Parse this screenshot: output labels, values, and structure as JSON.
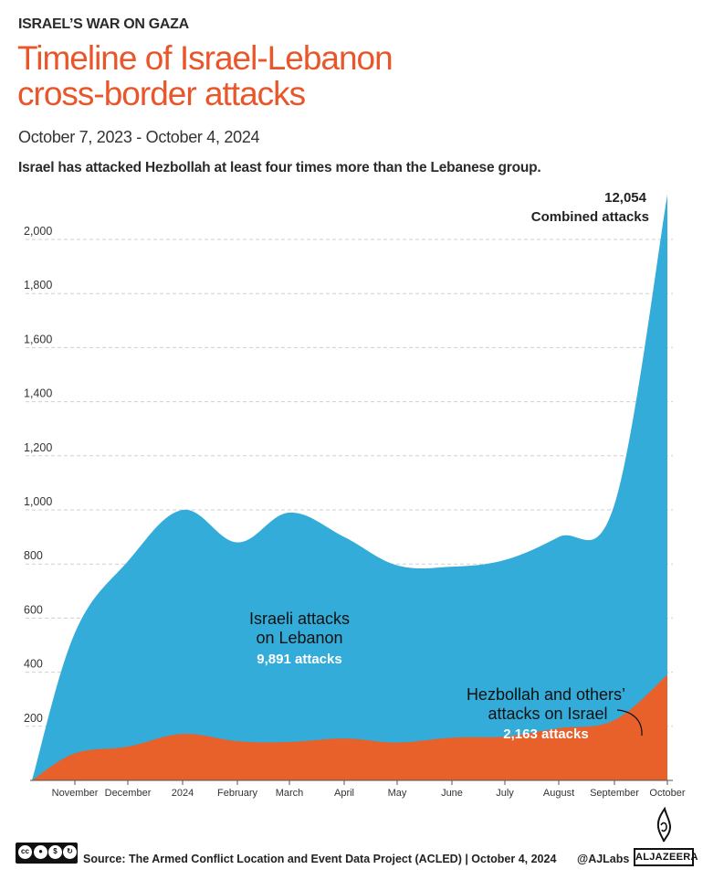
{
  "header": {
    "kicker": "ISRAEL’S WAR ON GAZA",
    "title_line1": "Timeline of Israel-Lebanon",
    "title_line2": "cross-border attacks",
    "date_range": "October 7, 2023 - October 4, 2024",
    "subtitle": "Israel has attacked Hezbollah at least four times more than the Lebanese group."
  },
  "colors": {
    "title": "#e8562a",
    "israeli_area": "#33acd9",
    "hezbollah_area": "#e8602a",
    "grid": "#cfcfcf",
    "text": "#222222"
  },
  "chart_data": {
    "type": "area",
    "stacked": true,
    "title": "Timeline of Israel-Lebanon cross-border attacks",
    "xlabel": "",
    "ylabel": "",
    "ylim": [
      0,
      2000
    ],
    "yticks": [
      200,
      400,
      600,
      800,
      1000,
      1200,
      1400,
      1600,
      1800,
      2000
    ],
    "ytick_labels": [
      "200",
      "400",
      "600",
      "800",
      "1,000",
      "1,200",
      "1,400",
      "1,600",
      "1,800",
      "2,000"
    ],
    "grid": true,
    "x": [
      "Oct 7",
      "November",
      "December",
      "2024",
      "February",
      "March",
      "April",
      "May",
      "June",
      "July",
      "August",
      "September",
      "October"
    ],
    "xtick_labels": [
      "November",
      "December",
      "2024",
      "February",
      "March",
      "April",
      "May",
      "June",
      "July",
      "August",
      "September",
      "October"
    ],
    "series": [
      {
        "name": "Hezbollah and others’ attacks on Israel",
        "values": [
          0,
          100,
          125,
          172,
          145,
          142,
          155,
          140,
          158,
          162,
          193,
          223,
          390
        ]
      },
      {
        "name": "Israeli attacks on Lebanon",
        "values": [
          0,
          445,
          685,
          828,
          735,
          848,
          745,
          655,
          632,
          653,
          707,
          797,
          1775
        ]
      }
    ],
    "annotations": {
      "combined_total": "12,054",
      "combined_label": "Combined attacks",
      "israeli_label_1": "Israeli attacks",
      "israeli_label_2": "on Lebanon",
      "israeli_total": "9,891 attacks",
      "hezbollah_label_1": "Hezbollah and others’",
      "hezbollah_label_2": "attacks on Israel",
      "hezbollah_total": "2,163 attacks"
    }
  },
  "footer": {
    "source": "Source:  The Armed Conflict Location and Event Data Project (ACLED) | October 4, 2024",
    "handle": "@AJLabs",
    "brand": "ALJAZEERA",
    "license_icons": [
      "cc",
      "by",
      "nc",
      "sa"
    ],
    "license_labels": [
      "BY",
      "NC",
      "SA"
    ]
  }
}
